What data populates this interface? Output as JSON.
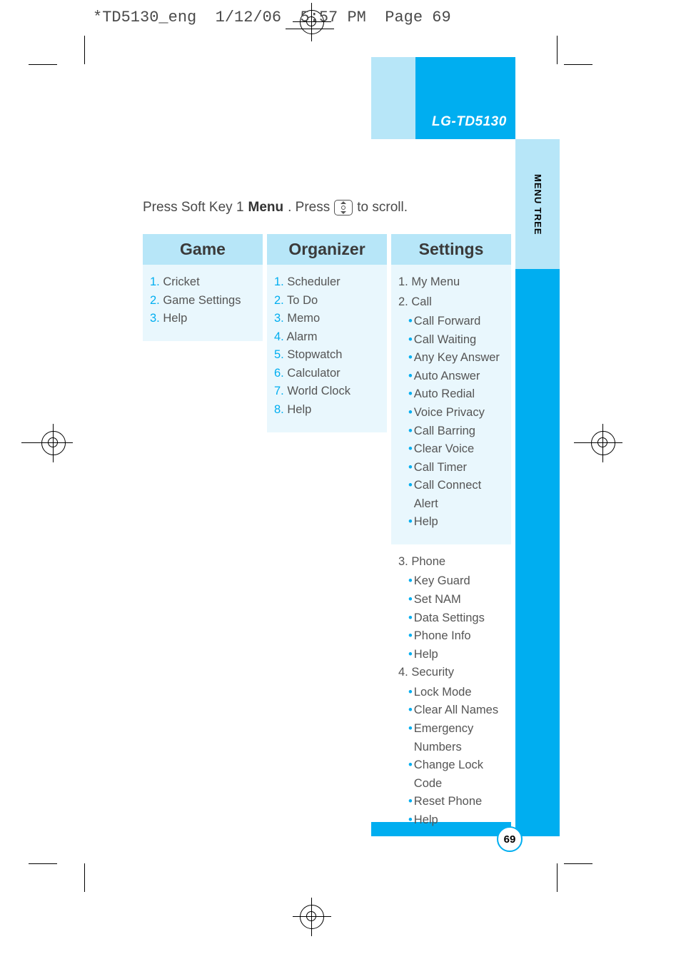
{
  "slug": "*TD5130_eng  1/12/06  5:57 PM  Page 69",
  "model": "LG-TD5130",
  "sideTab": "MENU TREE",
  "pageNumber": "69",
  "intro": {
    "p1": "Press Soft Key 1 ",
    "bold": "Menu",
    "p2": ". Press",
    "p3": "to scroll."
  },
  "colors": {
    "accent": "#00aef0",
    "paleHeader": "#b7e6f8",
    "paleBody": "#e9f7fd",
    "text": "#555555"
  },
  "columns": [
    {
      "title": "Game",
      "items": [
        {
          "n": "1.",
          "label": "Cricket"
        },
        {
          "n": "2.",
          "label": "Game Settings"
        },
        {
          "n": "3.",
          "label": "Help"
        }
      ]
    },
    {
      "title": "Organizer",
      "items": [
        {
          "n": "1.",
          "label": "Scheduler"
        },
        {
          "n": "2.",
          "label": "To Do"
        },
        {
          "n": "3.",
          "label": "Memo"
        },
        {
          "n": "4.",
          "label": "Alarm"
        },
        {
          "n": "5.",
          "label": "Stopwatch"
        },
        {
          "n": "6.",
          "label": "Calculator"
        },
        {
          "n": "7.",
          "label": "World Clock"
        },
        {
          "n": "8.",
          "label": "Help"
        }
      ]
    },
    {
      "title": "Settings",
      "sections": [
        {
          "bg": true,
          "groups": [
            {
              "n": "1.",
              "label": "My Menu",
              "subs": []
            },
            {
              "n": "2.",
              "label": "Call",
              "subs": [
                "Call Forward",
                "Call Waiting",
                "Any Key Answer",
                "Auto Answer",
                "Auto Redial",
                "Voice Privacy",
                "Call Barring",
                "Clear Voice",
                "Call Timer",
                "Call Connect Alert",
                "Help"
              ]
            }
          ]
        },
        {
          "bg": false,
          "groups": [
            {
              "n": "3.",
              "label": "Phone",
              "subs": [
                "Key Guard",
                "Set NAM",
                "Data Settings",
                "Phone Info",
                "Help"
              ]
            },
            {
              "n": "4.",
              "label": "Security",
              "subs": [
                "Lock Mode",
                "Clear All Names",
                "Emergency Numbers",
                "Change Lock Code",
                "Reset Phone",
                "Help"
              ]
            }
          ]
        }
      ]
    }
  ]
}
